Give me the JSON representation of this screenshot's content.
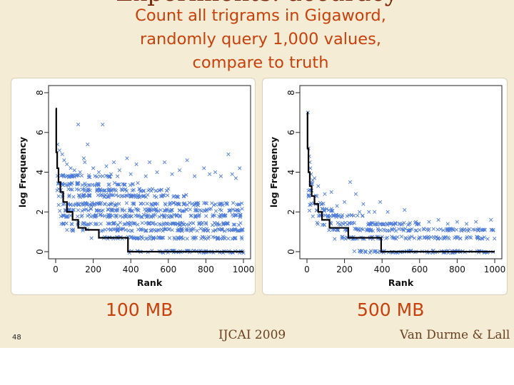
{
  "slide": {
    "title_fragment": "Experiments: accuracy",
    "subtitle_lines": [
      "Count all trigrams in Gigaword,",
      "randomly query 1,000 values,",
      "compare to truth"
    ],
    "slide_number": "48",
    "venue": "IJCAI 2009",
    "authors": "Van Durme & Lall"
  },
  "chart_data": [
    {
      "type": "scatter",
      "caption": "100 MB",
      "xlabel": "Rank",
      "ylabel": "log Frequency",
      "xlim": [
        0,
        1000
      ],
      "ylim": [
        0,
        8
      ],
      "xticks": [
        "0",
        "200",
        "400",
        "600",
        "800",
        "1000"
      ],
      "yticks": [
        "0",
        "2",
        "4",
        "6",
        "8"
      ],
      "series": [
        {
          "role": "truth",
          "style": "step line",
          "color": "#000000",
          "points": [
            [
              0,
              7.2
            ],
            [
              3,
              5.0
            ],
            [
              8,
              4.2
            ],
            [
              15,
              3.5
            ],
            [
              25,
              3.0
            ],
            [
              40,
              2.5
            ],
            [
              60,
              2.0
            ],
            [
              90,
              1.6
            ],
            [
              120,
              1.2
            ],
            [
              160,
              1.1
            ],
            [
              230,
              0.7
            ],
            [
              385,
              0.0
            ],
            [
              1000,
              0.0
            ]
          ]
        },
        {
          "role": "estimate",
          "style": "x markers",
          "color": "#4d7bd8",
          "levels": [
            {
              "y": 0.0,
              "x_from": 380,
              "x_to": 1000
            },
            {
              "y": 0.7,
              "x_from": 180,
              "x_to": 1000
            },
            {
              "y": 1.1,
              "x_from": 60,
              "x_to": 1000
            },
            {
              "y": 1.4,
              "x_from": 30,
              "x_to": 1000
            },
            {
              "y": 1.8,
              "x_from": 20,
              "x_to": 1000
            },
            {
              "y": 2.1,
              "x_from": 10,
              "x_to": 1000
            },
            {
              "y": 2.4,
              "x_from": 10,
              "x_to": 1000
            },
            {
              "y": 2.8,
              "x_from": 10,
              "x_to": 700
            },
            {
              "y": 3.1,
              "x_from": 5,
              "x_to": 600
            },
            {
              "y": 3.4,
              "x_from": 5,
              "x_to": 450
            },
            {
              "y": 3.8,
              "x_from": 5,
              "x_to": 350
            }
          ],
          "outliers": [
            [
              120,
              6.4
            ],
            [
              250,
              6.4
            ],
            [
              170,
              5.4
            ],
            [
              310,
              4.5
            ],
            [
              500,
              4.5
            ],
            [
              700,
              4.6
            ],
            [
              920,
              4.9
            ],
            [
              150,
              4.7
            ],
            [
              380,
              4.7
            ],
            [
              850,
              4.0
            ],
            [
              980,
              4.2
            ],
            [
              10,
              5.4
            ],
            [
              20,
              5.1
            ],
            [
              35,
              4.9
            ],
            [
              45,
              4.6
            ],
            [
              60,
              4.4
            ],
            [
              80,
              4.2
            ],
            [
              100,
              4.1
            ],
            [
              130,
              4.0
            ],
            [
              155,
              4.5
            ],
            [
              200,
              4.2
            ],
            [
              230,
              4.0
            ],
            [
              270,
              4.3
            ],
            [
              295,
              3.9
            ],
            [
              340,
              4.1
            ],
            [
              400,
              3.9
            ],
            [
              430,
              4.4
            ],
            [
              480,
              3.8
            ],
            [
              540,
              4.0
            ],
            [
              580,
              4.5
            ],
            [
              620,
              3.9
            ],
            [
              660,
              4.1
            ],
            [
              740,
              3.8
            ],
            [
              790,
              4.2
            ],
            [
              820,
              3.9
            ],
            [
              880,
              3.8
            ],
            [
              940,
              3.9
            ],
            [
              960,
              3.7
            ]
          ]
        }
      ]
    },
    {
      "type": "scatter",
      "caption": "500 MB",
      "xlabel": "Rank",
      "ylabel": "log Frequency",
      "xlim": [
        0,
        1000
      ],
      "ylim": [
        0,
        8
      ],
      "xticks": [
        "0",
        "200",
        "400",
        "600",
        "800",
        "1000"
      ],
      "yticks": [
        "0",
        "2",
        "4",
        "6",
        "8"
      ],
      "series": [
        {
          "role": "truth",
          "style": "step line",
          "color": "#000000",
          "points": [
            [
              0,
              7.0
            ],
            [
              3,
              5.2
            ],
            [
              8,
              4.0
            ],
            [
              15,
              3.3
            ],
            [
              25,
              2.8
            ],
            [
              40,
              2.4
            ],
            [
              60,
              2.0
            ],
            [
              80,
              1.6
            ],
            [
              120,
              1.2
            ],
            [
              220,
              0.7
            ],
            [
              395,
              0.0
            ],
            [
              1000,
              0.0
            ]
          ]
        },
        {
          "role": "estimate",
          "style": "x markers",
          "color": "#4d7bd8",
          "levels": [
            {
              "y": 0.0,
              "x_from": 230,
              "x_to": 1000
            },
            {
              "y": 0.7,
              "x_from": 140,
              "x_to": 1000
            },
            {
              "y": 1.1,
              "x_from": 90,
              "x_to": 1000
            },
            {
              "y": 1.4,
              "x_from": 50,
              "x_to": 600
            },
            {
              "y": 1.8,
              "x_from": 25,
              "x_to": 300
            },
            {
              "y": 2.1,
              "x_from": 12,
              "x_to": 140
            },
            {
              "y": 2.4,
              "x_from": 8,
              "x_to": 90
            },
            {
              "y": 2.8,
              "x_from": 5,
              "x_to": 55
            },
            {
              "y": 3.1,
              "x_from": 3,
              "x_to": 40
            },
            {
              "y": 3.4,
              "x_from": 2,
              "x_to": 30
            }
          ],
          "outliers": [
            [
              5,
              7.0
            ],
            [
              8,
              5.2
            ],
            [
              12,
              4.8
            ],
            [
              15,
              4.5
            ],
            [
              18,
              4.2
            ],
            [
              22,
              3.9
            ],
            [
              30,
              3.6
            ],
            [
              40,
              3.7
            ],
            [
              60,
              3.3
            ],
            [
              95,
              2.9
            ],
            [
              130,
              3.0
            ],
            [
              160,
              2.3
            ],
            [
              200,
              2.5
            ],
            [
              230,
              3.5
            ],
            [
              260,
              2.9
            ],
            [
              280,
              2.0
            ],
            [
              300,
              2.4
            ],
            [
              330,
              2.0
            ],
            [
              360,
              2.0
            ],
            [
              390,
              2.5
            ],
            [
              430,
              2.0
            ],
            [
              520,
              2.1
            ],
            [
              580,
              1.5
            ],
            [
              650,
              1.5
            ],
            [
              700,
              1.6
            ],
            [
              750,
              1.4
            ],
            [
              800,
              1.5
            ],
            [
              850,
              1.4
            ],
            [
              900,
              1.5
            ],
            [
              980,
              1.6
            ]
          ]
        }
      ]
    }
  ]
}
